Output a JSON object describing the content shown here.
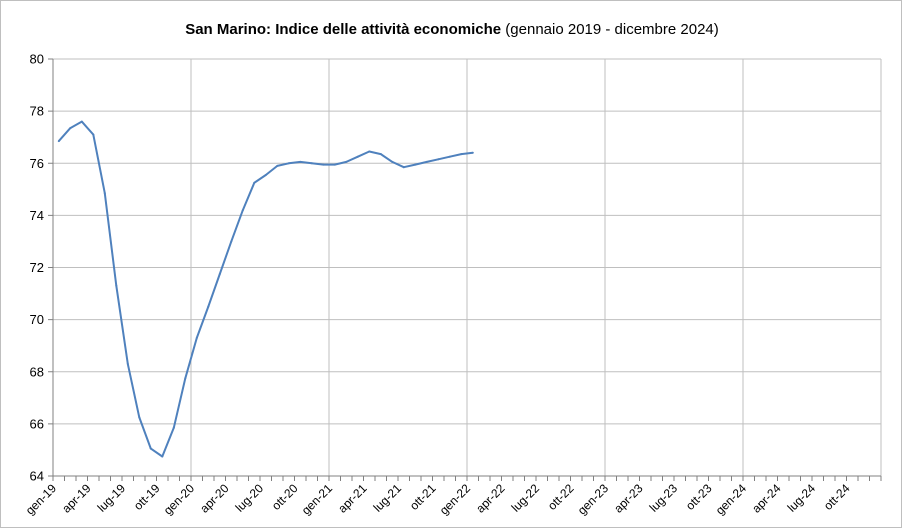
{
  "chart_data": {
    "type": "line",
    "title": "San Marino: Indice delle attività economiche",
    "subtitle": "(gennaio 2019 - dicembre 2024)",
    "xlabel": "",
    "ylabel": "",
    "ylim": [
      64,
      80
    ],
    "yticks": [
      64,
      66,
      68,
      70,
      72,
      74,
      76,
      78,
      80
    ],
    "grid": true,
    "legend": "none",
    "colors": {
      "line": "#4f81bd",
      "grid": "#bfbfbf",
      "axis": "#808080"
    },
    "xtick_labels": [
      "gen-19",
      "apr-19",
      "lug-19",
      "ott-19",
      "gen-20",
      "apr-20",
      "lug-20",
      "ott-20",
      "gen-21",
      "apr-21",
      "lug-21",
      "ott-21",
      "gen-22",
      "apr-22",
      "lug-22",
      "ott-22",
      "gen-23",
      "apr-23",
      "lug-23",
      "ott-23",
      "gen-24",
      "apr-24",
      "lug-24",
      "ott-24"
    ],
    "series": [
      {
        "values": [
          76.85,
          77.35,
          77.6,
          77.1,
          74.85,
          71.3,
          68.3,
          66.25,
          65.05,
          64.75,
          65.85,
          67.75,
          69.3,
          70.5,
          71.75,
          73.0,
          74.2,
          75.25,
          75.55,
          75.9,
          76.0,
          76.05,
          76.0,
          75.95,
          75.95,
          76.05,
          76.25,
          76.45,
          76.35,
          76.05,
          75.85,
          75.95,
          76.05,
          76.15,
          76.25,
          76.35,
          76.4
        ]
      }
    ]
  }
}
